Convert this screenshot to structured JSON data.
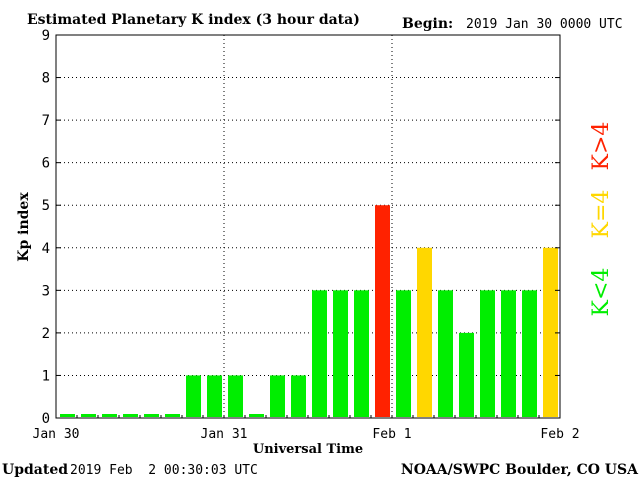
{
  "header": {
    "title": "Estimated Planetary K index (3 hour data)",
    "begin_label": "Begin:",
    "begin_value": "2019 Jan 30 0000 UTC"
  },
  "footer": {
    "updated_label": "Updated",
    "updated_value": "2019 Feb  2 00:30:03 UTC",
    "source": "NOAA/SWPC Boulder, CO USA"
  },
  "legend": {
    "items": [
      {
        "label": "K<4",
        "color": "#00ee00"
      },
      {
        "label": "K=4",
        "color": "#ffd700"
      },
      {
        "label": "K>4",
        "color": "#ff2200"
      }
    ]
  },
  "chart_data": {
    "type": "bar",
    "xlabel": "Universal Time",
    "ylabel": "Kp index",
    "ylim": [
      0,
      9
    ],
    "yticks": [
      0,
      1,
      2,
      3,
      4,
      5,
      6,
      7,
      8,
      9
    ],
    "xticks": [
      "Jan 30",
      "Jan 31",
      "Feb 1",
      "Feb 2"
    ],
    "interval_hours": 3,
    "grid": "dotted",
    "legend_position": "right",
    "values": [
      0,
      0,
      0,
      0,
      0,
      0,
      1,
      1,
      1,
      0,
      1,
      1,
      3,
      3,
      3,
      5,
      3,
      4,
      3,
      2,
      3,
      3,
      3,
      4
    ],
    "colors": {
      "below": "#00ee00",
      "equal": "#ffd700",
      "above": "#ff2200"
    }
  }
}
